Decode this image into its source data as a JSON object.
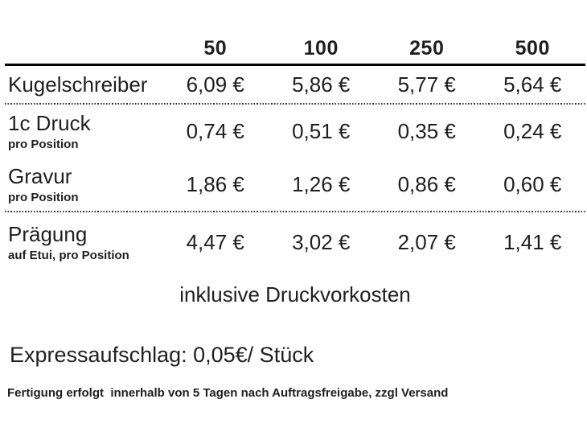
{
  "page": {
    "background_color": "#ffffff",
    "text_color": "#1f1f1f"
  },
  "table": {
    "quantity_headers": [
      "50",
      "100",
      "250",
      "500"
    ],
    "rows": [
      {
        "label": "Kugelschreiber",
        "sublabel": "",
        "values": [
          "6,09 €",
          "5,86 €",
          "5,77 €",
          "5,64 €"
        ]
      },
      {
        "label": "1c Druck",
        "sublabel": "pro Position",
        "values": [
          "0,74 €",
          "0,51 €",
          "0,35 €",
          "0,24 €"
        ]
      },
      {
        "label": "Gravur",
        "sublabel": "pro Position",
        "values": [
          "1,86 €",
          "1,26 €",
          "0,86 €",
          "0,60 €"
        ]
      },
      {
        "label": "Prägung",
        "sublabel": "auf Etui, pro Position",
        "values": [
          "4,47 €",
          "3,02 €",
          "2,07 €",
          "1,41 €"
        ]
      }
    ],
    "footnote": "inklusive Druckvorkosten"
  },
  "notes": {
    "express": "Expressaufschlag: 0,05€/ Stück",
    "production": "Fertigung erfolgt  innerhalb von 5 Tagen nach Auftragsfreigabe, zzgl Versand"
  }
}
